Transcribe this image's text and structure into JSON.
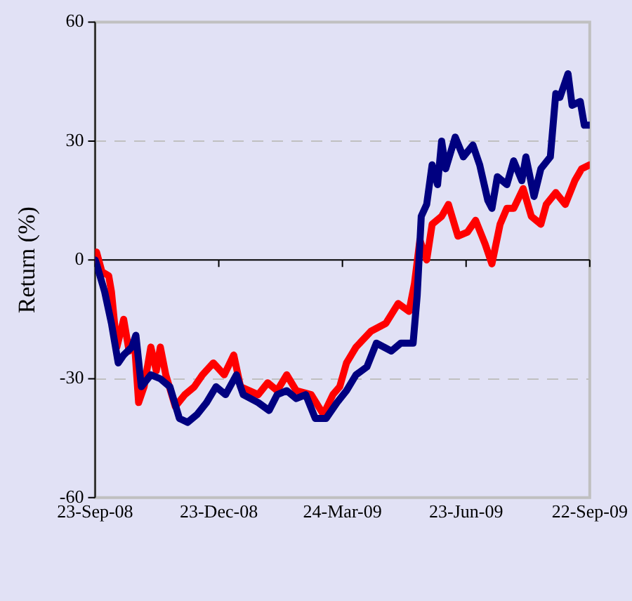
{
  "chart_data": {
    "type": "line",
    "ylabel": "Return (%)",
    "xlim": [
      "2008-09-23",
      "2009-09-22"
    ],
    "xticks": [
      {
        "value": "2008-09-23",
        "label": "23-Sep-08"
      },
      {
        "value": "2008-12-23",
        "label": "23-Dec-08"
      },
      {
        "value": "2009-03-24",
        "label": "24-Mar-09"
      },
      {
        "value": "2009-06-23",
        "label": "23-Jun-09"
      },
      {
        "value": "2009-09-22",
        "label": "22-Sep-09"
      }
    ],
    "ylim": [
      -60,
      60
    ],
    "yticks": [
      -60,
      -30,
      0,
      30,
      60
    ],
    "grid": "y",
    "marker": "none",
    "line_style": "solid",
    "series": [
      {
        "color": "#000080",
        "x": [
          "2008-09-23",
          "2008-09-24",
          "2008-09-30",
          "2008-10-05",
          "2008-10-10",
          "2008-10-14",
          "2008-10-20",
          "2008-10-23",
          "2008-10-27",
          "2008-11-03",
          "2008-11-10",
          "2008-11-17",
          "2008-11-24",
          "2008-11-30",
          "2008-12-07",
          "2008-12-14",
          "2008-12-21",
          "2008-12-28",
          "2009-01-05",
          "2009-01-10",
          "2009-01-21",
          "2009-01-29",
          "2009-02-04",
          "2009-02-11",
          "2009-02-18",
          "2009-02-25",
          "2009-03-04",
          "2009-03-12",
          "2009-03-20",
          "2009-03-27",
          "2009-04-03",
          "2009-04-11",
          "2009-04-18",
          "2009-04-29",
          "2009-05-06",
          "2009-05-15",
          "2009-05-18",
          "2009-05-21",
          "2009-05-25",
          "2009-05-29",
          "2009-06-02",
          "2009-06-05",
          "2009-06-08",
          "2009-06-15",
          "2009-06-21",
          "2009-06-28",
          "2009-07-03",
          "2009-07-09",
          "2009-07-12",
          "2009-07-16",
          "2009-07-23",
          "2009-07-28",
          "2009-08-03",
          "2009-08-06",
          "2009-08-12",
          "2009-08-17",
          "2009-08-24",
          "2009-08-28",
          "2009-08-31",
          "2009-09-06",
          "2009-09-09",
          "2009-09-15",
          "2009-09-18",
          "2009-09-22"
        ],
        "values": [
          0,
          -1,
          -8,
          -16,
          -26,
          -24,
          -22,
          -19,
          -32,
          -29,
          -30,
          -32,
          -40,
          -41,
          -39,
          -36,
          -32,
          -34,
          -29,
          -34,
          -36,
          -38,
          -34,
          -33,
          -35,
          -34,
          -40,
          -40,
          -36,
          -33,
          -29,
          -27,
          -21,
          -23,
          -21,
          -21,
          -9,
          11,
          14,
          24,
          19,
          30,
          23,
          31,
          26,
          29,
          24,
          15,
          13,
          21,
          19,
          25,
          20,
          26,
          16,
          23,
          26,
          42,
          41,
          47,
          39,
          40,
          34,
          34
        ]
      },
      {
        "color": "#ff0000",
        "x": [
          "2008-09-23",
          "2008-09-24",
          "2008-09-28",
          "2008-10-03",
          "2008-10-05",
          "2008-10-09",
          "2008-10-14",
          "2008-10-18",
          "2008-10-22",
          "2008-10-25",
          "2008-10-29",
          "2008-11-03",
          "2008-11-07",
          "2008-11-10",
          "2008-11-14",
          "2008-11-21",
          "2008-11-28",
          "2008-12-05",
          "2008-12-11",
          "2008-12-19",
          "2008-12-27",
          "2009-01-03",
          "2009-01-08",
          "2009-01-21",
          "2009-01-28",
          "2009-02-04",
          "2009-02-11",
          "2009-02-18",
          "2009-03-01",
          "2009-03-10",
          "2009-03-17",
          "2009-03-22",
          "2009-03-27",
          "2009-04-03",
          "2009-04-14",
          "2009-04-25",
          "2009-05-04",
          "2009-05-12",
          "2009-05-16",
          "2009-05-20",
          "2009-05-25",
          "2009-05-29",
          "2009-06-05",
          "2009-06-10",
          "2009-06-17",
          "2009-06-24",
          "2009-06-30",
          "2009-07-07",
          "2009-07-12",
          "2009-07-18",
          "2009-07-23",
          "2009-07-28",
          "2009-08-04",
          "2009-08-10",
          "2009-08-17",
          "2009-08-21",
          "2009-08-28",
          "2009-09-04",
          "2009-09-11",
          "2009-09-16",
          "2009-09-22"
        ],
        "values": [
          0,
          2,
          -3,
          -4,
          -8,
          -22,
          -15,
          -23,
          -21,
          -36,
          -32,
          -22,
          -28,
          -22,
          -29,
          -37,
          -34,
          -32,
          -29,
          -26,
          -29,
          -24,
          -32,
          -34,
          -31,
          -33,
          -29,
          -33,
          -34,
          -39,
          -34,
          -32,
          -26,
          -22,
          -18,
          -16,
          -11,
          -13,
          -6,
          5,
          0,
          9,
          11,
          14,
          6,
          7,
          10,
          4,
          -1,
          9,
          13,
          13,
          18,
          11,
          9,
          14,
          17,
          14,
          20,
          23,
          24
        ]
      }
    ]
  }
}
